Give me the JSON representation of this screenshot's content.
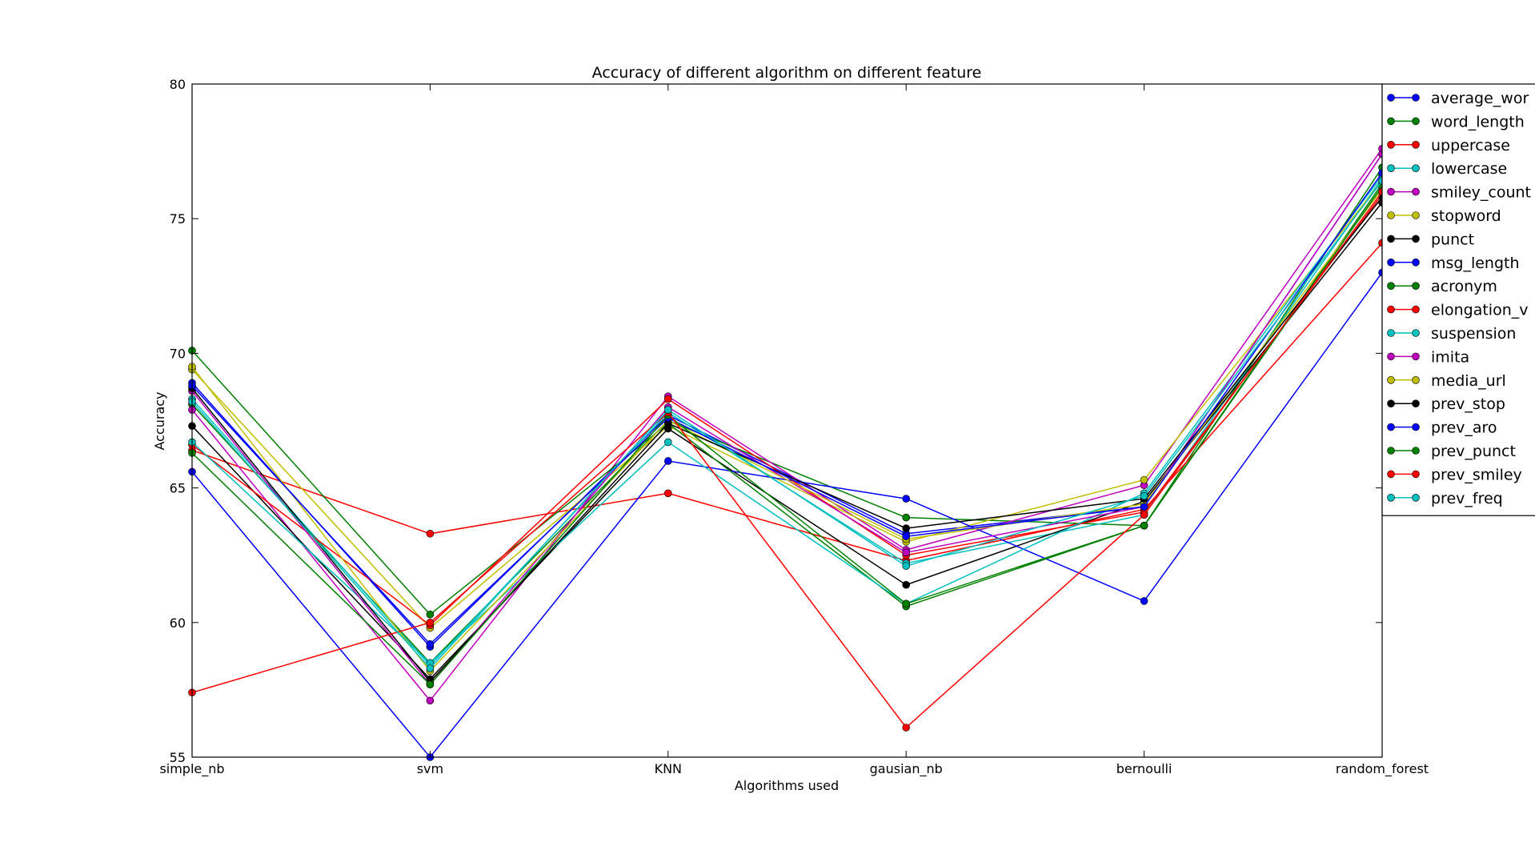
{
  "chart_data": {
    "type": "line",
    "title": "Accuracy of different algorithm on different feature",
    "xlabel": "Algorithms used",
    "ylabel": "Accuracy",
    "categories": [
      "simple_nb",
      "svm",
      "KNN",
      "gausian_nb",
      "bernoulli",
      "random_forest"
    ],
    "ylim": [
      55,
      80
    ],
    "yticks": [
      55,
      60,
      65,
      70,
      75,
      80
    ],
    "grid": false,
    "legend_position": "right",
    "series": [
      {
        "name": "average_wor",
        "color": "#0000ff",
        "values": [
          68.9,
          59.1,
          67.7,
          63.3,
          64.3,
          77.4
        ]
      },
      {
        "name": "word_length",
        "color": "#008000",
        "values": [
          68.1,
          58.5,
          67.5,
          63.9,
          63.6,
          76.9
        ]
      },
      {
        "name": "uppercase",
        "color": "#ff0000",
        "values": [
          66.4,
          63.3,
          64.8,
          62.3,
          64.2,
          74.1
        ]
      },
      {
        "name": "lowercase",
        "color": "#00bfbf",
        "values": [
          68.3,
          58.4,
          67.8,
          62.2,
          64.0,
          76.5
        ]
      },
      {
        "name": "smiley_count",
        "color": "#bf00bf",
        "values": [
          67.9,
          57.1,
          68.4,
          62.7,
          65.1,
          77.6
        ]
      },
      {
        "name": "stopword",
        "color": "#bfbf00",
        "values": [
          69.4,
          59.8,
          67.3,
          63.0,
          65.3,
          76.4
        ]
      },
      {
        "name": "punct",
        "color": "#000000",
        "values": [
          67.3,
          57.9,
          67.2,
          61.4,
          64.5,
          75.6
        ]
      },
      {
        "name": "msg_length",
        "color": "#0000ff",
        "values": [
          65.6,
          55.0,
          66.0,
          64.6,
          60.8,
          73.0
        ]
      },
      {
        "name": "acronym",
        "color": "#008000",
        "values": [
          70.1,
          60.3,
          67.4,
          60.6,
          63.6,
          76.3
        ]
      },
      {
        "name": "elongation_v",
        "color": "#ff0000",
        "values": [
          66.6,
          59.9,
          68.3,
          62.5,
          64.1,
          75.9
        ]
      },
      {
        "name": "suspension",
        "color": "#00bfbf",
        "values": [
          66.7,
          58.5,
          66.7,
          60.7,
          64.8,
          76.6
        ]
      },
      {
        "name": "imita",
        "color": "#bf00bf",
        "values": [
          68.6,
          57.7,
          68.0,
          62.6,
          64.3,
          77.4
        ]
      },
      {
        "name": "media_url",
        "color": "#bfbf00",
        "values": [
          69.5,
          58.2,
          67.5,
          63.1,
          64.4,
          76.1
        ]
      },
      {
        "name": "prev_stop",
        "color": "#000000",
        "values": [
          68.7,
          57.8,
          67.4,
          63.5,
          64.6,
          75.8
        ]
      },
      {
        "name": "prev_aro",
        "color": "#0000ff",
        "values": [
          68.8,
          59.2,
          67.6,
          63.2,
          64.3,
          76.7
        ]
      },
      {
        "name": "prev_punct",
        "color": "#008000",
        "values": [
          66.3,
          57.7,
          67.7,
          60.7,
          63.6,
          76.2
        ]
      },
      {
        "name": "prev_smiley",
        "color": "#ff0000",
        "values": [
          57.4,
          60.0,
          67.8,
          56.1,
          64.0,
          76.0
        ]
      },
      {
        "name": "prev_freq",
        "color": "#00bfbf",
        "values": [
          68.2,
          58.3,
          67.9,
          62.1,
          64.7,
          76.4
        ]
      }
    ]
  }
}
